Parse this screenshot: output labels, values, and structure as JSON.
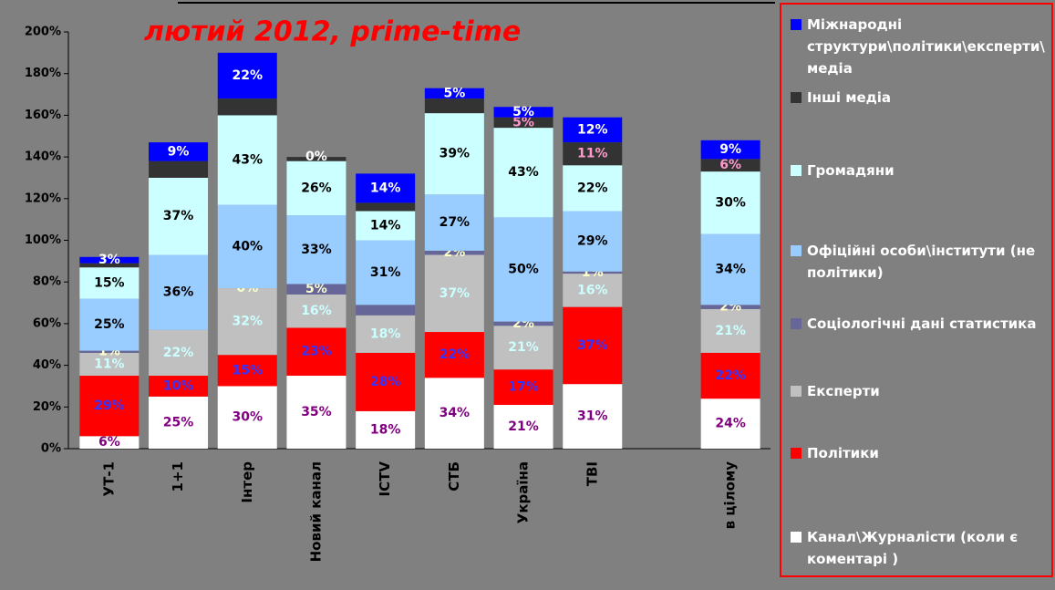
{
  "chart_data": {
    "type": "stacked_bar",
    "title": "лютий 2012, prime-time",
    "categories": [
      "УТ-1",
      "1+1",
      "Інтер",
      "Новий канал",
      "ICTV",
      "СТБ",
      "Україна",
      "ТВІ",
      null,
      "в цілому"
    ],
    "ylim": [
      0,
      200
    ],
    "yticks": [
      {
        "value": 0,
        "label": "0%"
      },
      {
        "value": 20,
        "label": "20%"
      },
      {
        "value": 40,
        "label": "40%"
      },
      {
        "value": 60,
        "label": "60%"
      },
      {
        "value": 80,
        "label": "80%"
      },
      {
        "value": 100,
        "label": "100%"
      },
      {
        "value": 120,
        "label": "120%"
      },
      {
        "value": 140,
        "label": "140%"
      },
      {
        "value": 160,
        "label": "160%"
      },
      {
        "value": 180,
        "label": "180%"
      },
      {
        "value": 200,
        "label": "200%"
      }
    ],
    "legend": "right",
    "series": [
      {
        "name": "Канал\\Журналісти (коли є коментарі )",
        "color": "#ffffff",
        "label_color": "#800080",
        "values": [
          6,
          25,
          30,
          35,
          18,
          34,
          21,
          31,
          null,
          24
        ],
        "value_labels": [
          "6%",
          "25%",
          "30%",
          "35%",
          "18%",
          "34%",
          "21%",
          "31%",
          null,
          "24%"
        ]
      },
      {
        "name": "Політики",
        "color": "#ff0000",
        "label_color": "#3333ff",
        "values": [
          29,
          10,
          15,
          23,
          28,
          22,
          17,
          37,
          null,
          22
        ],
        "value_labels": [
          "29%",
          "10%",
          "15%",
          "23%",
          "28%",
          "22%",
          "17%",
          "37%",
          null,
          "22%"
        ]
      },
      {
        "name": "Експерти",
        "color": "#c0c0c0",
        "label_color": "#ccffff",
        "values": [
          11,
          22,
          32,
          16,
          18,
          37,
          21,
          16,
          null,
          21
        ],
        "value_labels": [
          "11%",
          "22%",
          "32%",
          "16%",
          "18%",
          "37%",
          "21%",
          "16%",
          null,
          "21%"
        ]
      },
      {
        "name": "Соціологічні дані статистика",
        "color": "#666699",
        "label_color": "#ffffcc",
        "values": [
          1,
          0,
          0,
          5,
          5,
          2,
          2,
          1,
          null,
          2
        ],
        "value_labels": [
          "1%",
          null,
          "0%",
          "5%",
          null,
          "2%",
          "2%",
          "1%",
          null,
          "2%"
        ]
      },
      {
        "name": "Офіційні особи\\інститути (не політики)",
        "color": "#99ccff",
        "label_color": "#000000",
        "values": [
          25,
          36,
          40,
          33,
          31,
          27,
          50,
          29,
          null,
          34
        ],
        "value_labels": [
          "25%",
          "36%",
          "40%",
          "33%",
          "31%",
          "27%",
          "50%",
          "29%",
          null,
          "34%"
        ]
      },
      {
        "name": "Громадяни",
        "color": "#ccffff",
        "label_color": "#000000",
        "values": [
          15,
          37,
          43,
          26,
          14,
          39,
          43,
          22,
          null,
          30
        ],
        "value_labels": [
          "15%",
          "37%",
          "43%",
          "26%",
          "14%",
          "39%",
          "43%",
          "22%",
          null,
          "30%"
        ]
      },
      {
        "name": "Інші медіа",
        "color": "#333333",
        "label_color": "#ff99cc",
        "values": [
          2,
          8,
          8,
          2,
          4,
          7,
          5,
          11,
          null,
          6
        ],
        "value_labels": [
          null,
          null,
          null,
          null,
          null,
          null,
          "5%",
          "11%",
          null,
          "6%"
        ]
      },
      {
        "name": "Міжнародні структури\\політики\\експерти\\медіа",
        "color": "#0000ff",
        "label_color": "#ffffff",
        "values": [
          3,
          9,
          22,
          0,
          14,
          5,
          5,
          12,
          null,
          9
        ],
        "value_labels": [
          "3%",
          "9%",
          "22%",
          "0%",
          "14%",
          "5%",
          "5%",
          "12%",
          null,
          "9%"
        ]
      }
    ]
  }
}
